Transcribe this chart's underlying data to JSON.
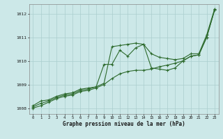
{
  "x": [
    0,
    1,
    2,
    3,
    4,
    5,
    6,
    7,
    8,
    9,
    10,
    11,
    12,
    13,
    14,
    15,
    16,
    17,
    18,
    19,
    20,
    21,
    22,
    23
  ],
  "line1": [
    1008.1,
    1008.3,
    1008.35,
    1008.5,
    1008.6,
    1008.65,
    1008.8,
    1008.85,
    1008.9,
    1009.05,
    1010.6,
    1010.65,
    1010.7,
    1010.75,
    1010.7,
    1010.3,
    1010.15,
    1010.1,
    1010.05,
    1010.1,
    1010.3,
    1010.3,
    1011.1,
    1012.2
  ],
  "line2": [
    1008.05,
    1008.2,
    1008.3,
    1008.45,
    1008.55,
    1008.6,
    1008.75,
    1008.8,
    1008.9,
    1009.85,
    1009.85,
    1010.45,
    1010.2,
    1010.55,
    1010.7,
    1009.7,
    1009.65,
    1009.6,
    1009.7,
    1010.0,
    1010.2,
    1010.25,
    1011.0,
    1012.15
  ],
  "line3": [
    1008.0,
    1008.1,
    1008.25,
    1008.4,
    1008.5,
    1008.55,
    1008.7,
    1008.75,
    1008.85,
    1009.0,
    1009.25,
    1009.45,
    1009.55,
    1009.6,
    1009.6,
    1009.65,
    1009.75,
    1009.82,
    1009.9,
    1010.0,
    1010.2,
    1010.25,
    1011.0,
    1012.15
  ],
  "ylim": [
    1007.75,
    1012.4
  ],
  "yticks": [
    1008,
    1009,
    1010,
    1011,
    1012
  ],
  "xticks": [
    0,
    1,
    2,
    3,
    4,
    5,
    6,
    7,
    8,
    9,
    10,
    11,
    12,
    13,
    14,
    15,
    16,
    17,
    18,
    19,
    20,
    21,
    22,
    23
  ],
  "xlabel": "Graphe pression niveau de la mer (hPa)",
  "line_color": "#2d6a2d",
  "bg_color": "#cce8e8",
  "grid_color": "#aacece",
  "title": ""
}
